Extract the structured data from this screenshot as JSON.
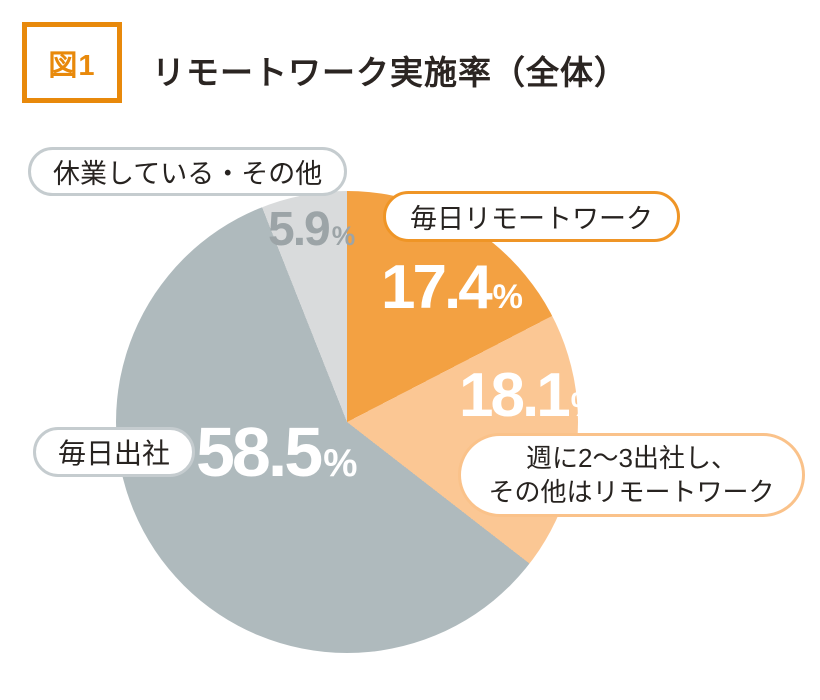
{
  "header": {
    "tag": "図1",
    "title": "リモートワーク実施率（全体）"
  },
  "chart_data": {
    "type": "pie",
    "title": "リモートワーク実施率（全体）",
    "unit": "%",
    "total": 100,
    "start_angle_deg": 0,
    "direction": "clockwise",
    "legend_position": "callout-pills",
    "segments": [
      {
        "label": "毎日リモートワーク",
        "value": 17.4,
        "color": "#f3a142"
      },
      {
        "label": "週に2〜3出社し、その他はリモートワーク",
        "value": 18.1,
        "color": "#fbc794"
      },
      {
        "label": "毎日出社",
        "value": 58.5,
        "color": "#afbabd"
      },
      {
        "label": "休業している・その他",
        "value": 5.9,
        "color": "#d9dbdc"
      }
    ]
  },
  "callouts": {
    "daily_remote": {
      "label": "毎日リモートワーク",
      "value": "17.4",
      "unit": "%"
    },
    "hybrid": {
      "label_line1": "週に2〜3出社し、",
      "label_line2": "その他はリモートワーク",
      "value": "18.1",
      "unit": "%"
    },
    "office": {
      "label": "毎日出社",
      "value": "58.5",
      "unit": "%"
    },
    "closed": {
      "label": "休業している・その他",
      "value": "5.9",
      "unit": "%"
    }
  },
  "colors": {
    "accent_orange": "#e8890b",
    "pie_orange": "#f3a142",
    "pie_light_orange": "#fbc794",
    "pie_gray": "#afbabd",
    "pie_light_gray": "#d9dbdc",
    "pill_border_orange": "#ef9526",
    "pill_border_light_orange": "#fac28a",
    "pill_border_gray": "#c5cccf",
    "muted_value_text": "#9ca4a7",
    "text_dark": "#2b2522",
    "value_text": "#ffffff"
  }
}
